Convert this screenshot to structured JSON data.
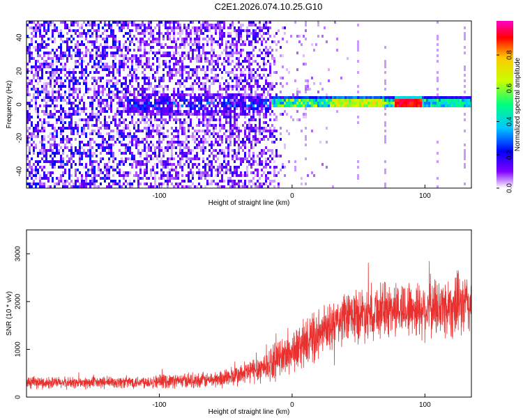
{
  "title": "C2E1.2026.074.10.25.G10",
  "chart_data": [
    {
      "type": "heatmap",
      "title": "C2E1.2026.074.10.25.G10",
      "xlabel": "Height of straight line (km)",
      "ylabel": "Frequency (Hz)",
      "xlim": [
        -200,
        135
      ],
      "ylim": [
        -50,
        50
      ],
      "xticks": [
        -100,
        0,
        100
      ],
      "yticks": [
        -40,
        -20,
        0,
        20,
        40
      ],
      "colorbar": {
        "label": "Normalized spectral amplitude",
        "range": [
          0,
          1
        ],
        "ticks": [
          "0.0",
          "0.2",
          "0.4",
          "0.6",
          "0.8"
        ],
        "colors": [
          "#ffffff",
          "#8000ff",
          "#0000ff",
          "#00c8ff",
          "#00ff80",
          "#c8ff00",
          "#ffc800",
          "#ff0000",
          "#ff00c8"
        ]
      },
      "features": [
        {
          "name": "noise-scatter",
          "x_range": [
            -200,
            -20
          ],
          "freq_range": [
            -50,
            50
          ],
          "amplitude": 0.15
        },
        {
          "name": "emerging-line",
          "x_range": [
            -125,
            -15
          ],
          "freq_center": 0,
          "amplitude": 0.25
        },
        {
          "name": "carrier-line",
          "x_range": [
            -15,
            135
          ],
          "freq_center": 1,
          "amplitude": 0.6
        }
      ]
    },
    {
      "type": "line",
      "xlabel": "Height of straight line (km)",
      "ylabel": "SNR (10 * v/v)",
      "xlim": [
        -200,
        135
      ],
      "ylim": [
        0,
        3500
      ],
      "xticks": [
        -100,
        0,
        100
      ],
      "yticks": [
        0,
        1000,
        2000,
        3000
      ],
      "color": "#e8312f",
      "series": [
        {
          "name": "SNR",
          "x": [
            -200,
            -150,
            -100,
            -60,
            -40,
            -20,
            0,
            20,
            40,
            60,
            80,
            100,
            120,
            135
          ],
          "y": [
            300,
            300,
            330,
            360,
            450,
            650,
            950,
            1300,
            1650,
            1800,
            1850,
            1850,
            1900,
            1950
          ],
          "spread": [
            150,
            150,
            170,
            200,
            280,
            400,
            550,
            600,
            650,
            700,
            700,
            750,
            800,
            800
          ]
        }
      ]
    }
  ]
}
